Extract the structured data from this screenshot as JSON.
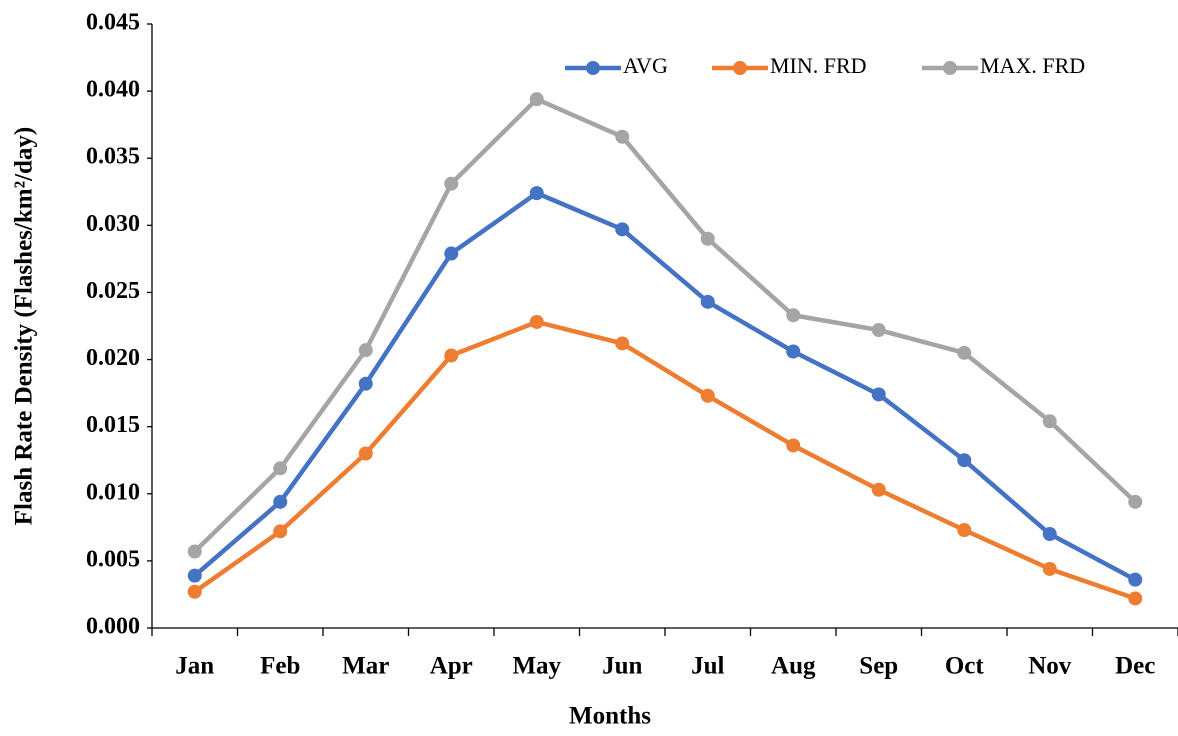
{
  "chart_data": {
    "type": "line",
    "x_label": "Months",
    "y_label": "Flash Rate Density (Flashes/km²/day)",
    "categories": [
      "Jan",
      "Feb",
      "Mar",
      "Apr",
      "May",
      "Jun",
      "Jul",
      "Aug",
      "Sep",
      "Oct",
      "Nov",
      "Dec"
    ],
    "series": [
      {
        "name": "AVG",
        "color": "#4472c4",
        "values": [
          0.0039,
          0.0094,
          0.0182,
          0.0279,
          0.0324,
          0.0297,
          0.0243,
          0.0206,
          0.0174,
          0.0125,
          0.007,
          0.0036
        ]
      },
      {
        "name": "MIN. FRD",
        "color": "#ed7d31",
        "values": [
          0.0027,
          0.0072,
          0.013,
          0.0203,
          0.0228,
          0.0212,
          0.0173,
          0.0136,
          0.0103,
          0.0073,
          0.0044,
          0.0022
        ]
      },
      {
        "name": "MAX. FRD",
        "color": "#a5a5a5",
        "values": [
          0.0057,
          0.0119,
          0.0207,
          0.0331,
          0.0394,
          0.0366,
          0.029,
          0.0233,
          0.0222,
          0.0205,
          0.0154,
          0.0094
        ]
      }
    ],
    "ylim": [
      0,
      0.045
    ],
    "yticks": [
      {
        "value": 0,
        "label": "0.000"
      },
      {
        "value": 0.005,
        "label": "0.005"
      },
      {
        "value": 0.01,
        "label": "0.010"
      },
      {
        "value": 0.015,
        "label": "0.015"
      },
      {
        "value": 0.02,
        "label": "0.020"
      },
      {
        "value": 0.025,
        "label": "0.025"
      },
      {
        "value": 0.03,
        "label": "0.030"
      },
      {
        "value": 0.035,
        "label": "0.035"
      },
      {
        "value": 0.04,
        "label": "0.040"
      },
      {
        "value": 0.045,
        "label": "0.045"
      }
    ],
    "grid": false,
    "legend": "top"
  }
}
